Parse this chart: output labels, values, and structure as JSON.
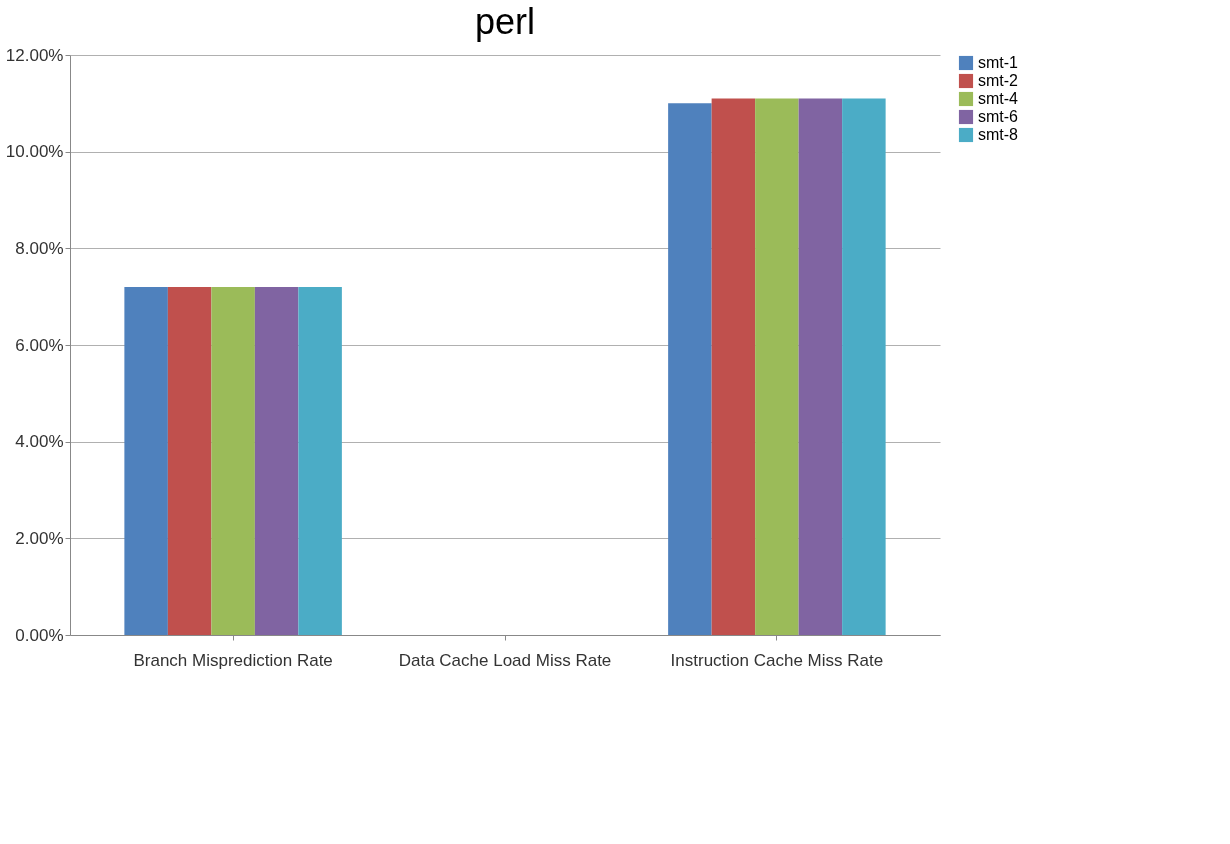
{
  "chart_data": {
    "type": "bar",
    "title": "perl",
    "categories": [
      "Branch Misprediction Rate",
      "Data Cache Load Miss Rate",
      "Instruction Cache Miss Rate"
    ],
    "series": [
      {
        "name": "smt-1",
        "color": "#4f81bd",
        "values": [
          7.2,
          0,
          11.0
        ]
      },
      {
        "name": "smt-2",
        "color": "#c0504d",
        "values": [
          7.2,
          0,
          11.1
        ]
      },
      {
        "name": "smt-4",
        "color": "#9bbb59",
        "values": [
          7.2,
          0,
          11.1
        ]
      },
      {
        "name": "smt-6",
        "color": "#8064a2",
        "values": [
          7.2,
          0,
          11.1
        ]
      },
      {
        "name": "smt-8",
        "color": "#4bacc6",
        "values": [
          7.2,
          0,
          11.1
        ]
      }
    ],
    "ylim": [
      0,
      12
    ],
    "yticks": [
      {
        "value": 0,
        "label": "0.00%"
      },
      {
        "value": 2,
        "label": "2.00%"
      },
      {
        "value": 4,
        "label": "4.00%"
      },
      {
        "value": 6,
        "label": "6.00%"
      },
      {
        "value": 8,
        "label": "8.00%"
      },
      {
        "value": 10,
        "label": "10.00%"
      },
      {
        "value": 12,
        "label": "12.00%"
      }
    ],
    "grid": "y",
    "legend": "right"
  }
}
